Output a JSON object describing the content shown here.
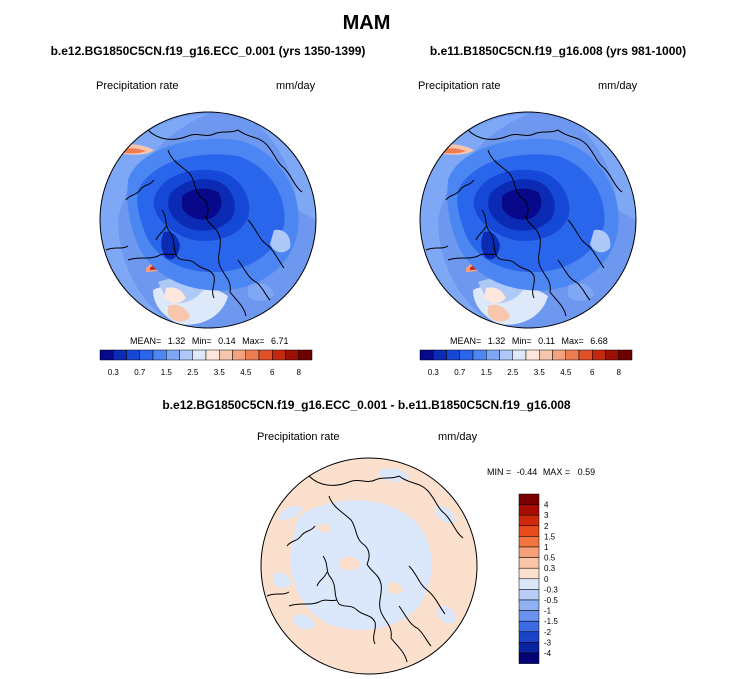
{
  "page": {
    "title": "MAM",
    "diff_title": "b.e12.BG1850C5CN.f19_g16.ECC_0.001 - b.e11.B1850C5CN.f19_g16.008"
  },
  "chart_data": [
    {
      "type": "heatmap",
      "projection": "north-polar-stereographic",
      "title": "b.e12.BG1850C5CN.f19_g16.ECC_0.001 (yrs 1350-1399)",
      "left_label": "Precipitation rate",
      "right_label": "mm/day",
      "variable": "Precipitation rate",
      "units": "mm/day",
      "stats": {
        "mean_label": "MEAN=",
        "mean": "1.32",
        "min_label": "Min=",
        "min": "0.14",
        "max_label": "Max=",
        "max": "6.71"
      },
      "colorbar": {
        "orientation": "horizontal",
        "levels": [
          0.3,
          0.5,
          0.7,
          1,
          1.5,
          2,
          2.5,
          3,
          3.5,
          4,
          4.5,
          5,
          6,
          7,
          8
        ],
        "tick_labels": [
          "0.3",
          "0.7",
          "1.5",
          "2.5",
          "3.5",
          "4.5",
          "6",
          "8"
        ],
        "colors": [
          "#08088a",
          "#0b2bb5",
          "#1648d8",
          "#2a66ec",
          "#4c86f2",
          "#7ea8f6",
          "#aec8f8",
          "#dde8fb",
          "#fde7dd",
          "#f8c6ad",
          "#f3a17f",
          "#ee7b52",
          "#e0512a",
          "#c12a10",
          "#9a1004",
          "#6e0000"
        ]
      }
    },
    {
      "type": "heatmap",
      "projection": "north-polar-stereographic",
      "title": "b.e11.B1850C5CN.f19_g16.008 (yrs 981-1000)",
      "left_label": "Precipitation rate",
      "right_label": "mm/day",
      "variable": "Precipitation rate",
      "units": "mm/day",
      "stats": {
        "mean_label": "MEAN=",
        "mean": "1.32",
        "min_label": "Min=",
        "min": "0.11",
        "max_label": "Max=",
        "max": "6.68"
      },
      "colorbar": {
        "orientation": "horizontal",
        "levels": [
          0.3,
          0.5,
          0.7,
          1,
          1.5,
          2,
          2.5,
          3,
          3.5,
          4,
          4.5,
          5,
          6,
          7,
          8
        ],
        "tick_labels": [
          "0.3",
          "0.7",
          "1.5",
          "2.5",
          "3.5",
          "4.5",
          "6",
          "8"
        ],
        "colors": [
          "#08088a",
          "#0b2bb5",
          "#1648d8",
          "#2a66ec",
          "#4c86f2",
          "#7ea8f6",
          "#aec8f8",
          "#dde8fb",
          "#fde7dd",
          "#f8c6ad",
          "#f3a17f",
          "#ee7b52",
          "#e0512a",
          "#c12a10",
          "#9a1004",
          "#6e0000"
        ]
      }
    },
    {
      "type": "heatmap",
      "projection": "north-polar-stereographic",
      "title": "b.e12.BG1850C5CN.f19_g16.ECC_0.001 - b.e11.B1850C5CN.f19_g16.008",
      "left_label": "Precipitation rate",
      "right_label": "mm/day",
      "variable": "Precipitation rate difference",
      "units": "mm/day",
      "stats": {
        "min_label": "MIN =",
        "min": "-0.44",
        "max_label": "MAX =",
        "max": "0.59"
      },
      "colorbar": {
        "orientation": "vertical",
        "tick_labels": [
          "4",
          "3",
          "2",
          "1.5",
          "1",
          "0.5",
          "0.3",
          "0",
          "-0.3",
          "-0.5",
          "-1",
          "-1.5",
          "-2",
          "-3",
          "-4"
        ],
        "colors": [
          "#7a0000",
          "#a80d02",
          "#cd2a0c",
          "#e84a1c",
          "#f2753f",
          "#f6a07a",
          "#f9c4a8",
          "#fbe0cd",
          "#dbe7fb",
          "#b9cef7",
          "#8fb0f2",
          "#6a92ee",
          "#3c6ae3",
          "#1a43c8",
          "#0a23a0",
          "#030375"
        ]
      }
    }
  ]
}
